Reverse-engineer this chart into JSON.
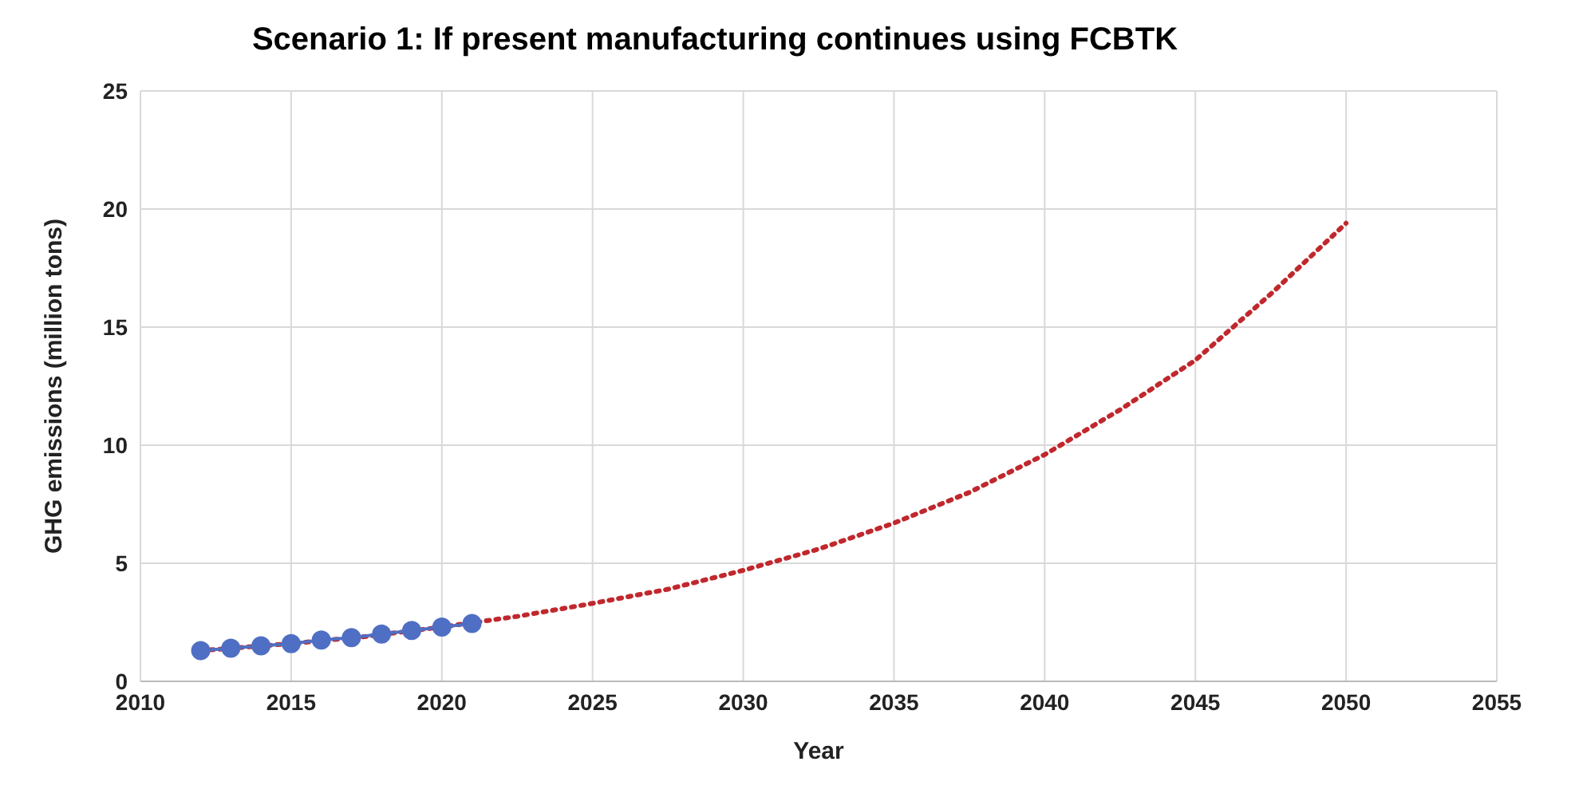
{
  "chart_data": {
    "type": "line",
    "title": "Scenario 1: If present manufacturing continues using FCBTK",
    "xlabel": "Year",
    "ylabel": "GHG emissions (million tons)",
    "xlim": [
      2010,
      2055
    ],
    "xticks": [
      2010,
      2015,
      2020,
      2025,
      2030,
      2035,
      2040,
      2045,
      2050,
      2055
    ],
    "ylim": [
      0,
      25
    ],
    "yticks": [
      0,
      5,
      10,
      15,
      20,
      25
    ],
    "grid": true,
    "series": [
      {
        "color": "#c0282d",
        "line_style": "dotted",
        "marker": "none",
        "x": [
          2012,
          2015,
          2017.5,
          2020,
          2022.5,
          2025,
          2027.5,
          2030,
          2032.5,
          2035,
          2037.5,
          2040,
          2042.5,
          2045,
          2047.5,
          2050
        ],
        "values": [
          1.3,
          1.6,
          1.9,
          2.3,
          2.75,
          3.3,
          3.9,
          4.7,
          5.6,
          6.7,
          8.0,
          9.6,
          11.5,
          13.6,
          16.4,
          19.4
        ]
      },
      {
        "color": "#4f6fc4",
        "line_style": "solid",
        "marker": "circle",
        "x": [
          2012,
          2013,
          2014,
          2015,
          2016,
          2017,
          2018,
          2019,
          2020,
          2021
        ],
        "values": [
          1.3,
          1.4,
          1.5,
          1.6,
          1.75,
          1.85,
          2.0,
          2.15,
          2.3,
          2.45
        ]
      }
    ]
  }
}
